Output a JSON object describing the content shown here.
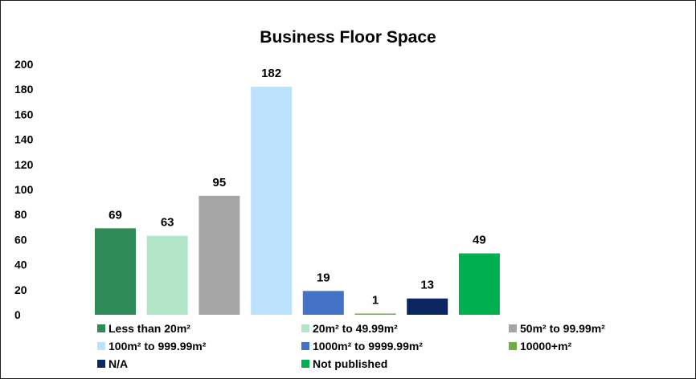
{
  "chart_data": {
    "type": "bar",
    "title": "Business Floor Space",
    "xlabel": "",
    "ylabel": "",
    "ylim": [
      0,
      200
    ],
    "yticks": [
      0,
      20,
      40,
      60,
      80,
      100,
      120,
      140,
      160,
      180,
      200
    ],
    "grid": false,
    "legend_position": "bottom",
    "categories": [
      "Less than 20m²",
      "20m² to 49.99m²",
      "50m² to 99.99m²",
      "100m² to 999.99m²",
      "1000m² to 9999.99m²",
      "10000+m²",
      "N/A",
      "Not published"
    ],
    "values": [
      69,
      63,
      95,
      182,
      19,
      1,
      13,
      49
    ],
    "colors": [
      "#2e8b57",
      "#b3e6c8",
      "#a5a5a5",
      "#bde2fb",
      "#4472c4",
      "#70ad47",
      "#0b2660",
      "#00b050"
    ]
  }
}
